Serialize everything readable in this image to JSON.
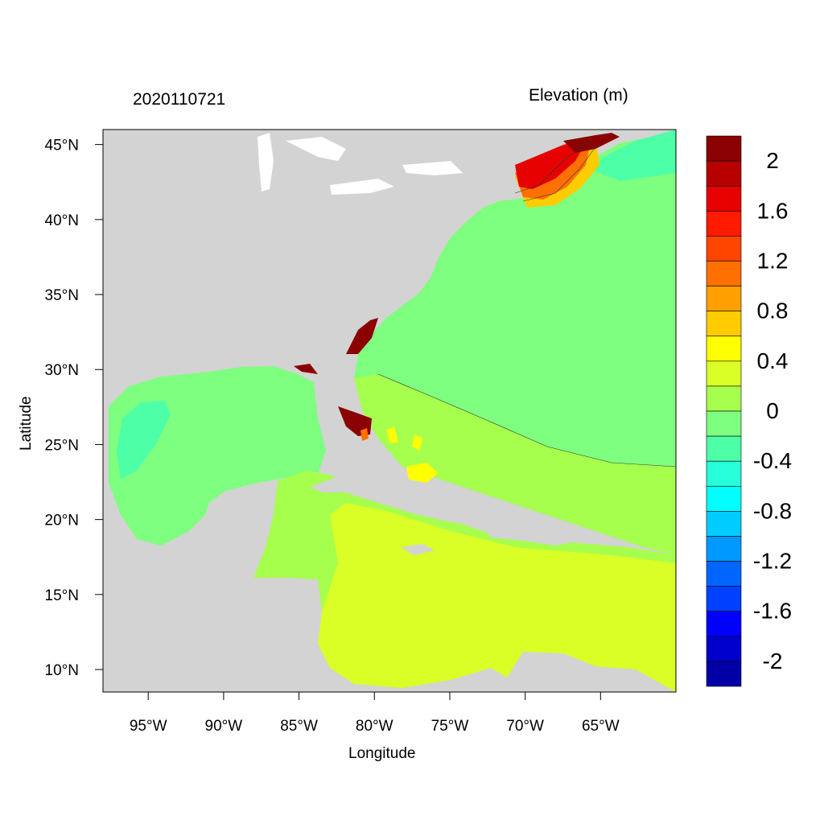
{
  "titles": {
    "timestamp": "2020110721",
    "variable": "Elevation (m)"
  },
  "axes": {
    "xlabel": "Longitude",
    "ylabel": "Latitude",
    "x_ticks": [
      "95°W",
      "90°W",
      "85°W",
      "80°W",
      "75°W",
      "70°W",
      "65°W"
    ],
    "y_ticks": [
      "45°N",
      "40°N",
      "35°N",
      "30°N",
      "25°N",
      "20°N",
      "15°N",
      "10°N"
    ],
    "lon_range": [
      -98,
      -60
    ],
    "lat_range": [
      8.5,
      46
    ]
  },
  "colorbar": {
    "labels": [
      "2",
      "1.6",
      "1.2",
      "0.8",
      "0.4",
      "0",
      "-0.4",
      "-0.8",
      "-1.2",
      "-1.6",
      "-2"
    ],
    "colors": [
      "#8b0000",
      "#b80000",
      "#e60000",
      "#ff1a00",
      "#ff4500",
      "#ff7000",
      "#ff9f00",
      "#ffcc00",
      "#ffff00",
      "#d9ff26",
      "#a6ff4d",
      "#7fff80",
      "#4dffa6",
      "#26ffd9",
      "#00ffff",
      "#00ccff",
      "#0099ff",
      "#0066ff",
      "#0040ff",
      "#0000ff",
      "#0000cc",
      "#0000a6"
    ]
  },
  "map_colors": {
    "land": "#d3d3d3",
    "open_atlantic": "#7fff80",
    "gulf_of_mexico": "#7fff80",
    "gulf_low": "#4dffa6",
    "caribbean": "#d9ff26",
    "straits": "#a6ff4d",
    "surge_high": "#e60000",
    "surge_extreme": "#8b0000"
  }
}
